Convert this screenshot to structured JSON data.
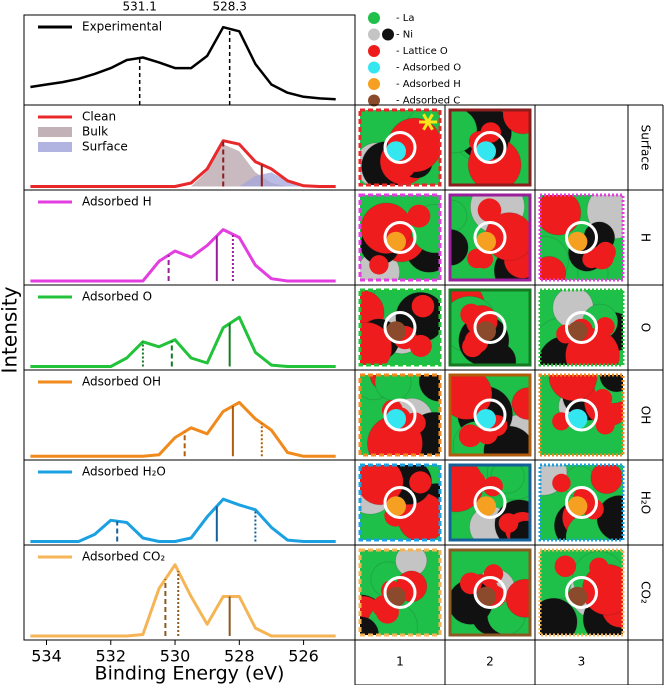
{
  "chart_data": [
    {
      "type": "line",
      "ylabel": "Intensity",
      "xlim": [
        534.7,
        524.4
      ],
      "ylim": [
        0,
        1.05
      ],
      "x": [
        534.5,
        534,
        533.5,
        533,
        532.5,
        532,
        531.5,
        531,
        530.5,
        530,
        529.5,
        529,
        528.5,
        528,
        527.5,
        527,
        526.5,
        526,
        525.5,
        525
      ],
      "series": [
        {
          "name": "Experimental",
          "kind": "line",
          "color": "#000000",
          "values": [
            0.22,
            0.25,
            0.28,
            0.32,
            0.38,
            0.45,
            0.55,
            0.58,
            0.52,
            0.45,
            0.45,
            0.6,
            0.95,
            0.9,
            0.5,
            0.25,
            0.15,
            0.1,
            0.08,
            0.07
          ]
        }
      ],
      "annotations": [
        531.1,
        528.3
      ]
    },
    {
      "type": "line",
      "xlim": [
        534.7,
        524.4
      ],
      "ylim": [
        -0.05,
        1.1
      ],
      "peak_color": "#8b1d1d",
      "x": [
        534.5,
        534,
        533.5,
        533,
        532.5,
        532,
        531.5,
        531,
        530.5,
        530,
        529.5,
        529,
        528.5,
        528,
        527.5,
        527,
        526.5,
        526,
        525.5,
        525
      ],
      "series": [
        {
          "name": "Clean",
          "kind": "line",
          "color": "#e8282b",
          "values": [
            0,
            0,
            0,
            0,
            0,
            0,
            0,
            0,
            0,
            0,
            0.05,
            0.25,
            0.65,
            0.6,
            0.35,
            0.25,
            0.08,
            0.01,
            0,
            0
          ]
        },
        {
          "name": "Bulk",
          "kind": "area",
          "color": "#b7a3a9",
          "values": [
            0,
            0,
            0,
            0,
            0,
            0,
            0,
            0,
            0,
            0,
            0,
            0.22,
            0.6,
            0.5,
            0.2,
            0.05,
            0,
            0,
            0,
            0
          ]
        },
        {
          "name": "Surface",
          "kind": "area",
          "color": "#a3a6da",
          "values": [
            0,
            0,
            0,
            0,
            0,
            0,
            0,
            0,
            0,
            0,
            0,
            0,
            0,
            0,
            0.15,
            0.2,
            0.07,
            0,
            0,
            0
          ]
        }
      ],
      "peaks": [
        {
          "x": 528.5,
          "style": "dashed"
        },
        {
          "x": 527.3,
          "style": "solid"
        }
      ]
    },
    {
      "type": "line",
      "xlim": [
        534.7,
        524.4
      ],
      "ylim": [
        -0.05,
        1.1
      ],
      "peak_color": "#9a1f9a",
      "x": [
        534.5,
        534,
        533.5,
        533,
        532.5,
        532,
        531.5,
        531,
        530.5,
        530,
        529.5,
        529,
        528.5,
        528,
        527.5,
        527,
        526.5,
        526,
        525.5,
        525
      ],
      "series": [
        {
          "name": "Adsorbed H",
          "kind": "line",
          "color": "#e33ee0",
          "values": [
            0,
            0,
            0,
            0,
            0,
            0,
            0,
            0,
            0.25,
            0.38,
            0.3,
            0.45,
            0.65,
            0.55,
            0.2,
            0.03,
            0,
            0,
            0,
            0
          ]
        }
      ],
      "peaks": [
        {
          "x": 530.2,
          "style": "dashed"
        },
        {
          "x": 528.7,
          "style": "solid"
        },
        {
          "x": 528.2,
          "style": "dotted"
        }
      ]
    },
    {
      "type": "line",
      "xlim": [
        534.7,
        524.4
      ],
      "ylim": [
        -0.05,
        1.1
      ],
      "peak_color": "#157a22",
      "x": [
        534.5,
        534,
        533.5,
        533,
        532.5,
        532,
        531.5,
        531,
        530.5,
        530,
        529.5,
        529,
        528.5,
        528,
        527.5,
        527,
        526.5,
        526,
        525.5,
        525
      ],
      "series": [
        {
          "name": "Adsorbed O",
          "kind": "line",
          "color": "#22c33a",
          "values": [
            0,
            0,
            0,
            0,
            0,
            0,
            0.12,
            0.35,
            0.28,
            0.38,
            0.12,
            0.05,
            0.55,
            0.7,
            0.2,
            0.02,
            0,
            0,
            0,
            0
          ]
        }
      ],
      "peaks": [
        {
          "x": 531.0,
          "style": "dotted"
        },
        {
          "x": 530.1,
          "style": "dashed"
        },
        {
          "x": 528.3,
          "style": "solid"
        }
      ]
    },
    {
      "type": "line",
      "xlim": [
        534.7,
        524.4
      ],
      "ylim": [
        -0.05,
        1.1
      ],
      "peak_color": "#b25d0e",
      "x": [
        534.5,
        534,
        533.5,
        533,
        532.5,
        532,
        531.5,
        531,
        530.5,
        530,
        529.5,
        529,
        528.5,
        528,
        527.5,
        527,
        526.5,
        526,
        525.5,
        525
      ],
      "series": [
        {
          "name": "Adsorbed OH",
          "kind": "line",
          "color": "#f08a1d",
          "values": [
            0,
            0,
            0,
            0,
            0,
            0,
            0,
            0,
            0.02,
            0.25,
            0.38,
            0.3,
            0.6,
            0.72,
            0.5,
            0.35,
            0.05,
            0,
            0,
            0
          ]
        }
      ],
      "peaks": [
        {
          "x": 529.7,
          "style": "dashed"
        },
        {
          "x": 528.2,
          "style": "solid"
        },
        {
          "x": 527.3,
          "style": "dotted"
        }
      ]
    },
    {
      "type": "line",
      "xlim": [
        534.7,
        524.4
      ],
      "ylim": [
        -0.05,
        1.1
      ],
      "peak_color": "#14619a",
      "x": [
        534.5,
        534,
        533.5,
        533,
        532.5,
        532,
        531.5,
        531,
        530.5,
        530,
        529.5,
        529,
        528.5,
        528,
        527.5,
        527,
        526.5,
        526,
        525.5,
        525
      ],
      "series": [
        {
          "name": "Adsorbed H₂O",
          "kind": "line",
          "color": "#1ba1e2",
          "values": [
            0,
            0,
            0,
            0,
            0.1,
            0.3,
            0.27,
            0.05,
            0,
            0,
            0.05,
            0.35,
            0.6,
            0.52,
            0.45,
            0.2,
            0.02,
            0,
            0,
            0
          ]
        }
      ],
      "peaks": [
        {
          "x": 531.8,
          "style": "dashed"
        },
        {
          "x": 528.7,
          "style": "solid"
        },
        {
          "x": 527.5,
          "style": "dotted"
        }
      ]
    },
    {
      "type": "line",
      "xlim": [
        534.7,
        524.4
      ],
      "ylim": [
        -0.05,
        1.1
      ],
      "peak_color": "#8a5a22",
      "xlabel": "Binding Energy (eV)",
      "xticks": [
        534,
        532,
        530,
        528,
        526
      ],
      "x": [
        534.5,
        534,
        533.5,
        533,
        532.5,
        532,
        531.5,
        531,
        530.5,
        530,
        529.5,
        529,
        528.5,
        528,
        527.5,
        527,
        526.5,
        526,
        525.5,
        525
      ],
      "series": [
        {
          "name": "Adsorbed CO₂",
          "kind": "line",
          "color": "#f5b556",
          "values": [
            0,
            0,
            0,
            0,
            0,
            0,
            0,
            0.02,
            0.6,
            0.9,
            0.5,
            0.15,
            0.5,
            0.5,
            0.1,
            0,
            0,
            0,
            0,
            0
          ]
        }
      ],
      "peaks": [
        {
          "x": 530.3,
          "style": "dashed"
        },
        {
          "x": 529.9,
          "style": "dotted"
        },
        {
          "x": 528.3,
          "style": "solid"
        }
      ]
    }
  ],
  "structures": {
    "legend": [
      {
        "label": "- La",
        "colors": [
          "#1fc04a"
        ]
      },
      {
        "label": "- Ni",
        "colors": [
          "#c4c4c4",
          "#111111"
        ]
      },
      {
        "label": "- Lattice O",
        "colors": [
          "#ee1c1c"
        ]
      },
      {
        "label": "- Adsorbed O",
        "colors": [
          "#33e6f0"
        ]
      },
      {
        "label": "- Adsorbed H",
        "colors": [
          "#f5a020"
        ]
      },
      {
        "label": "- Adsorbed C",
        "colors": [
          "#8b4a2b"
        ]
      }
    ],
    "row_labels": [
      "Surface",
      "H",
      "O",
      "OH",
      "H₂O",
      "CO₂"
    ],
    "column_labels": [
      "1",
      "2",
      "3"
    ]
  }
}
